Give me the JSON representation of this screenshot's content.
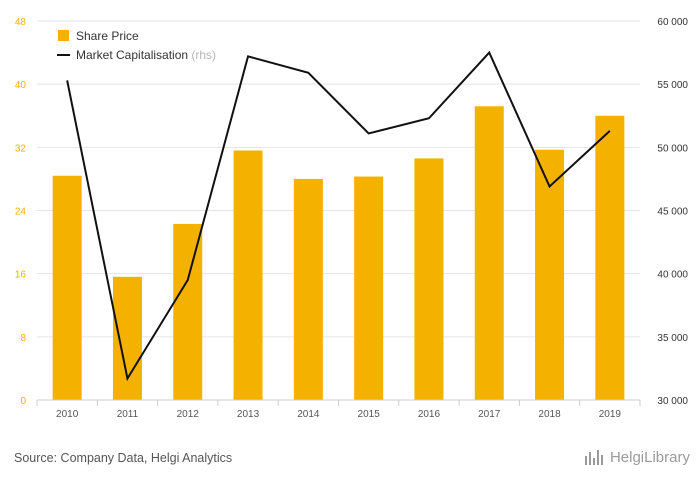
{
  "chart_data": {
    "type": "bar",
    "categories": [
      "2010",
      "2011",
      "2012",
      "2013",
      "2014",
      "2015",
      "2016",
      "2017",
      "2018",
      "2019"
    ],
    "series": [
      {
        "name": "Share Price",
        "type": "bar",
        "axis": "left",
        "color": "#f5b100",
        "values": [
          28.4,
          15.6,
          22.3,
          31.6,
          28.0,
          28.3,
          30.6,
          37.2,
          31.7,
          36.0
        ]
      },
      {
        "name": "Market Capitalisation",
        "type": "line",
        "axis": "right",
        "color": "#111111",
        "values": [
          55300,
          31700,
          39500,
          57200,
          55900,
          51100,
          52300,
          57500,
          46900,
          51300
        ]
      }
    ],
    "legend": {
      "items": [
        {
          "label": "Share Price"
        },
        {
          "label": "Market Capitalisation",
          "suffix": "(rhs)"
        }
      ]
    },
    "y_left": {
      "range": [
        0,
        48
      ],
      "ticks": [
        "0",
        "8",
        "16",
        "24",
        "32",
        "40",
        "48"
      ]
    },
    "y_right": {
      "range": [
        30000,
        60000
      ],
      "ticks": [
        "30 000",
        "35 000",
        "40 000",
        "45 000",
        "50 000",
        "55 000",
        "60 000"
      ]
    },
    "grid": true
  },
  "footer": {
    "source": "Source: Company Data, Helgi Analytics",
    "brand": "HelgiLibrary"
  }
}
